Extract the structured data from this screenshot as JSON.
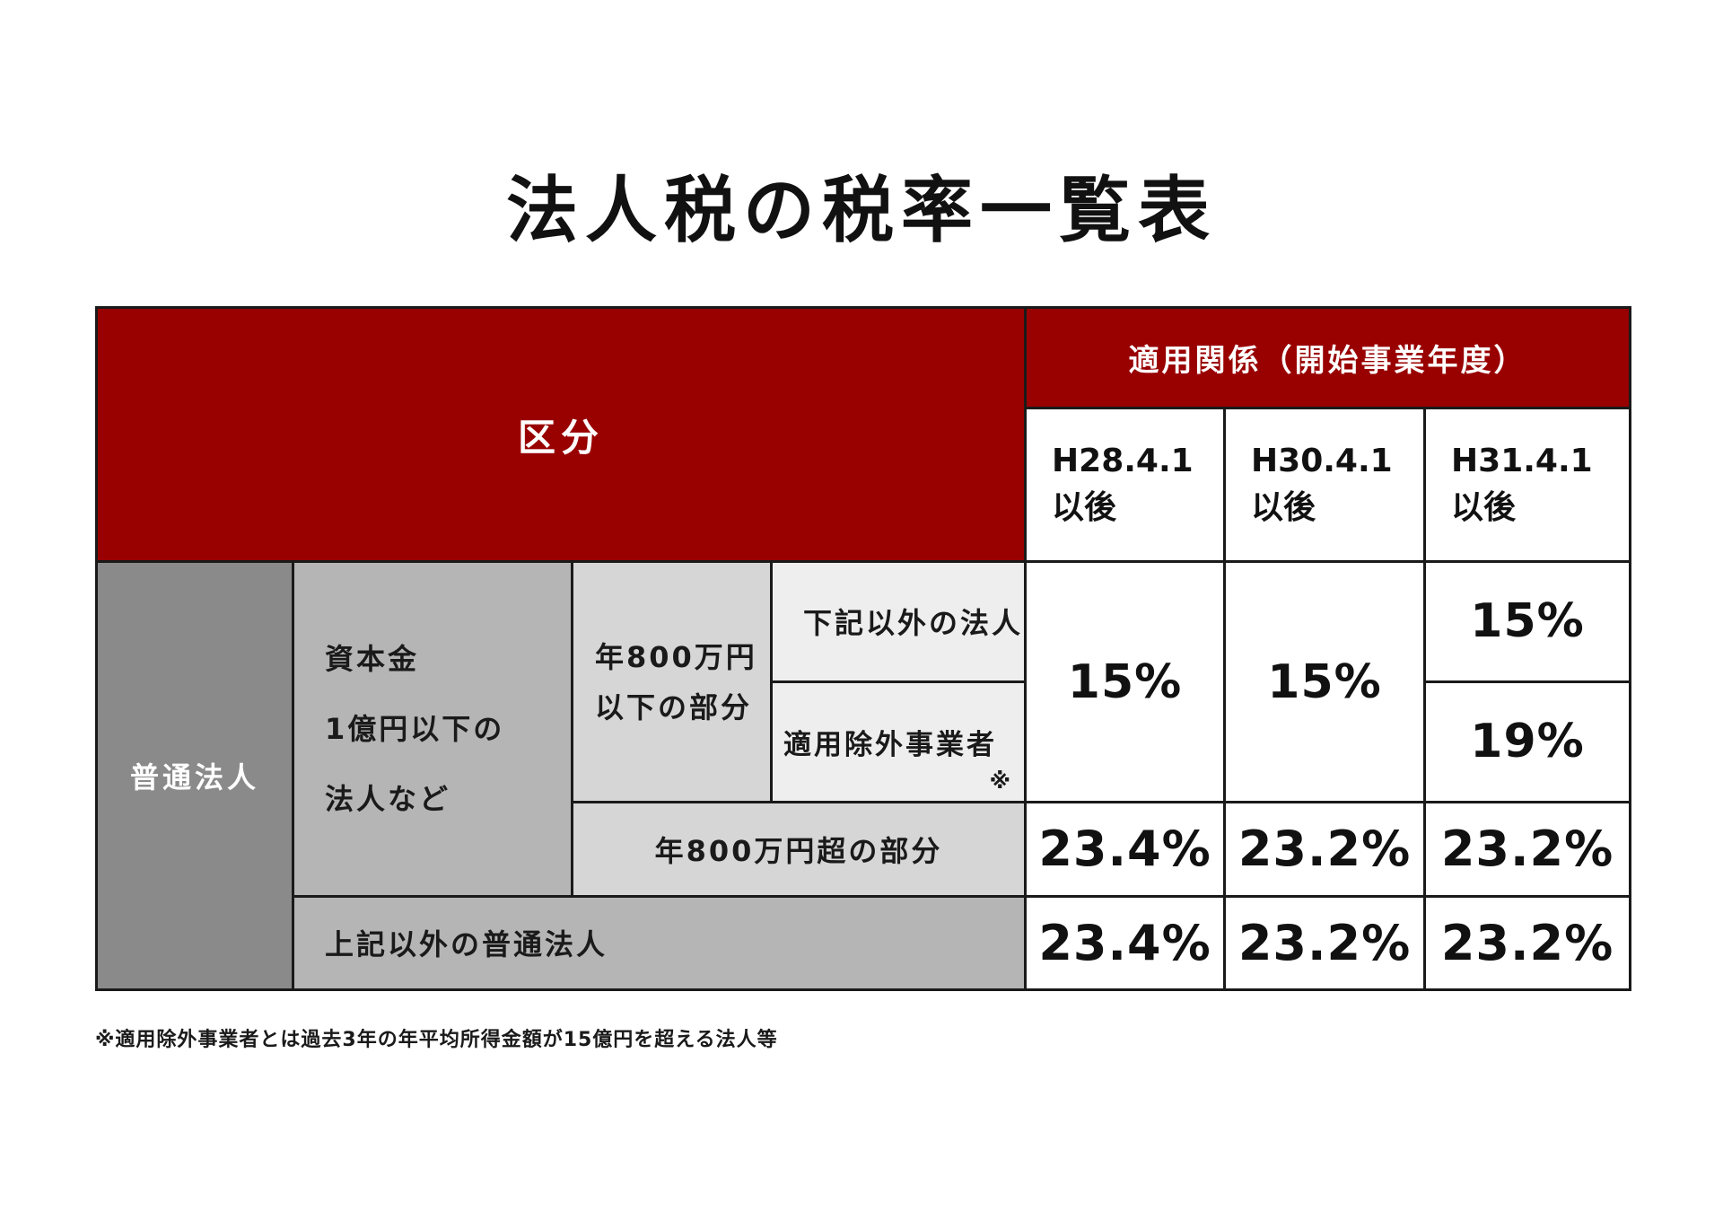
{
  "title": "法人税の税率一覧表",
  "header": {
    "kubun": "区分",
    "tekiyou": "適用関係（開始事業年度）",
    "periods": [
      {
        "line1": "H28.4.1",
        "line2": "以後"
      },
      {
        "line1": "H30.4.1",
        "line2": "以後"
      },
      {
        "line1": "H31.4.1",
        "line2": "以後"
      }
    ]
  },
  "labels": {
    "futsu_houjin": "普通法人",
    "shihonkin": [
      "資本金",
      "1億円以下の",
      "法人など"
    ],
    "nen800_ika": [
      "年800万円",
      "以下の部分"
    ],
    "kaki_igai": "下記以外の法人",
    "tekiyou_jogai": "適用除外事業者",
    "jogai_mark": "※",
    "nen800_chou": "年800万円超の部分",
    "jouki_igai": "上記以外の普通法人"
  },
  "rates": {
    "small_low": [
      "15%",
      "15%"
    ],
    "small_low_h31_other": "15%",
    "small_low_h31_excluded": "19%",
    "small_high": [
      "23.4%",
      "23.2%",
      "23.2%"
    ],
    "other": [
      "23.4%",
      "23.2%",
      "23.2%"
    ]
  },
  "footnote": "※適用除外事業者とは過去3年の年平均所得金額が15億円を超える法人等"
}
